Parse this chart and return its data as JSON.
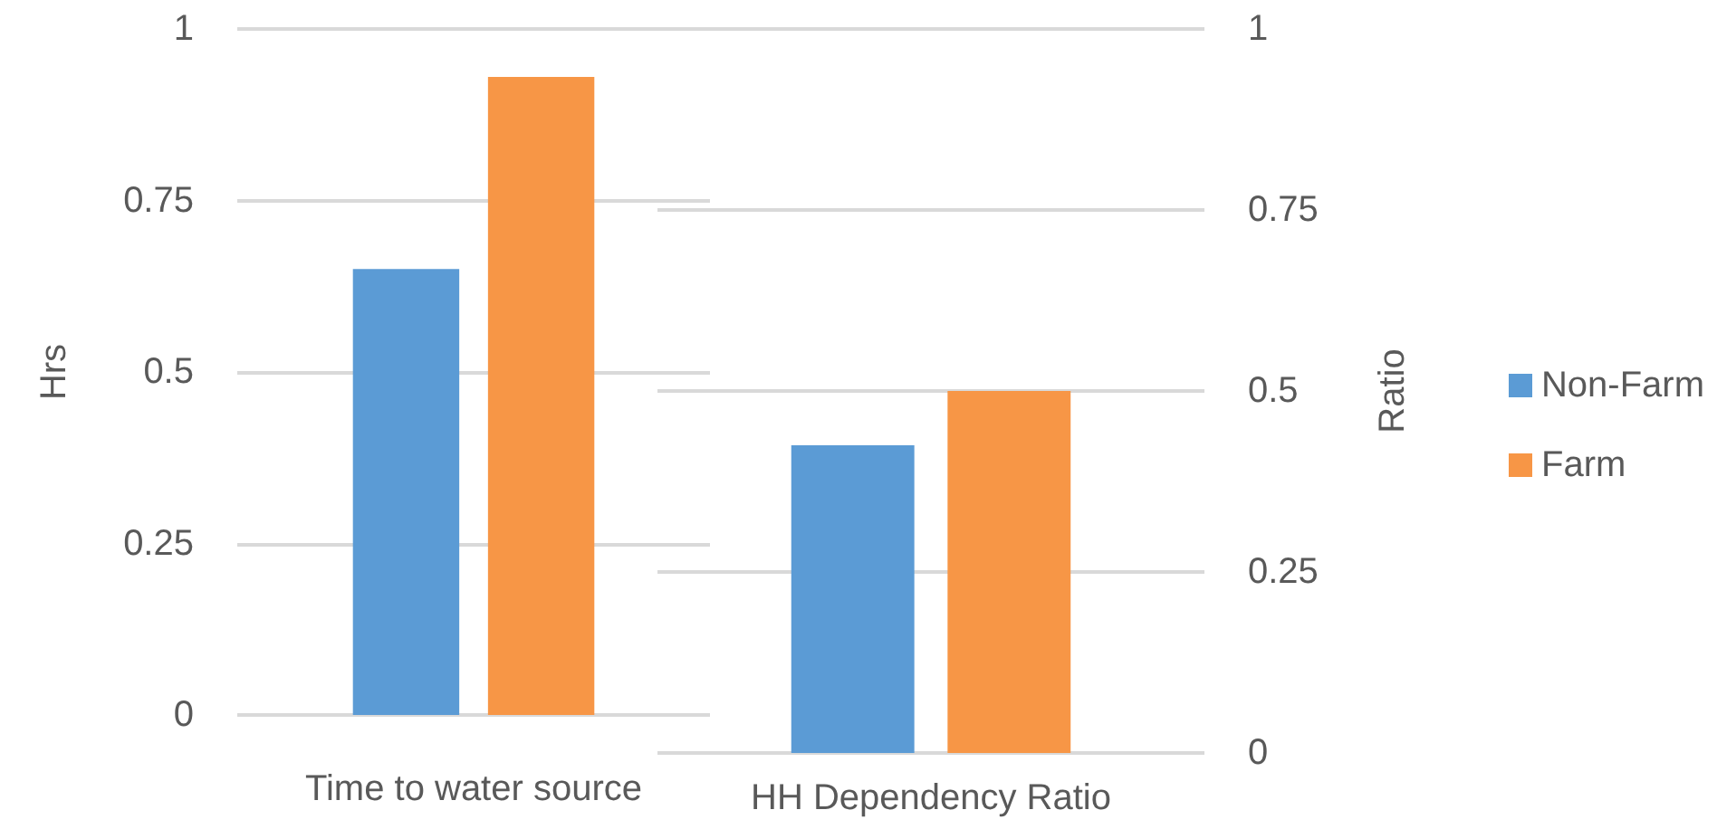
{
  "chart_data": [
    {
      "type": "bar",
      "categories": [
        "Time to water source"
      ],
      "ylabel": "Hrs",
      "series": [
        {
          "color": "#5b9bd5",
          "values": [
            0.65
          ]
        },
        {
          "color": "#f79646",
          "values": [
            0.93
          ]
        }
      ],
      "ylim": [
        0,
        1
      ],
      "yticks": [
        0,
        0.25,
        0.5,
        0.75,
        1
      ],
      "grid": "y"
    },
    {
      "type": "bar",
      "categories": [
        "HH Dependency Ratio"
      ],
      "ylabel": "Ratio",
      "series": [
        {
          "name": "Non-Farm",
          "color": "#5b9bd5",
          "values": [
            0.425
          ]
        },
        {
          "name": "Farm",
          "color": "#f79646",
          "values": [
            0.5
          ]
        }
      ],
      "ylim": [
        0,
        1
      ],
      "yticks": [
        0,
        0.25,
        0.5,
        0.75,
        1
      ],
      "grid": "y",
      "legend": "right"
    }
  ]
}
